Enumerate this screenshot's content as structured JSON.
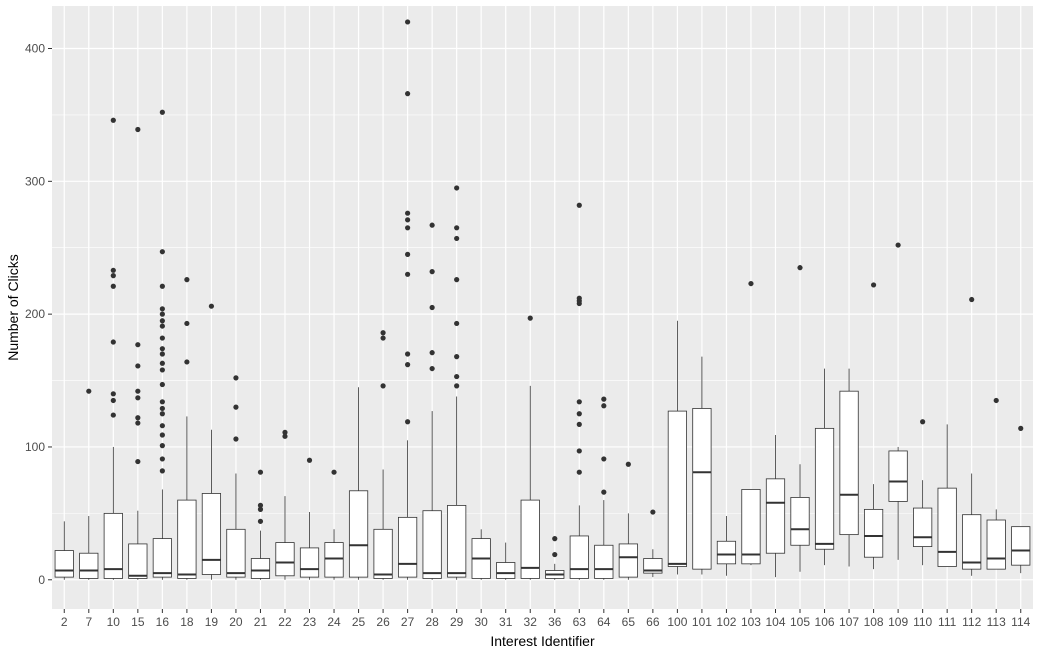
{
  "chart_data": {
    "type": "box",
    "xlabel": "Interest Identifier",
    "ylabel": "Number of Clicks",
    "ylim": [
      -22,
      432
    ],
    "yticks": [
      0,
      100,
      200,
      300,
      400
    ],
    "grid": true,
    "legend": "none",
    "colors": {
      "panel": "#ebebeb",
      "grid": "#ffffff",
      "box_fill": "#ffffff",
      "box_line": "#333333",
      "outlier": "#333333"
    },
    "categories": [
      "2",
      "7",
      "10",
      "15",
      "16",
      "18",
      "19",
      "20",
      "21",
      "22",
      "23",
      "24",
      "25",
      "26",
      "27",
      "28",
      "29",
      "30",
      "31",
      "32",
      "36",
      "63",
      "64",
      "65",
      "66",
      "100",
      "101",
      "102",
      "103",
      "104",
      "105",
      "106",
      "107",
      "108",
      "109",
      "110",
      "111",
      "112",
      "113",
      "114"
    ],
    "boxes": [
      {
        "id": "2",
        "min": 0,
        "q1": 2,
        "median": 7,
        "q3": 22,
        "max": 44,
        "outliers": []
      },
      {
        "id": "7",
        "min": 0,
        "q1": 1,
        "median": 7,
        "q3": 20,
        "max": 48,
        "outliers": [
          142
        ]
      },
      {
        "id": "10",
        "min": 0,
        "q1": 1,
        "median": 8,
        "q3": 50,
        "max": 100,
        "outliers": [
          124,
          135,
          140,
          179,
          221,
          229,
          233,
          346
        ]
      },
      {
        "id": "15",
        "min": 0,
        "q1": 1,
        "median": 3,
        "q3": 27,
        "max": 52,
        "outliers": [
          89,
          118,
          122,
          137,
          142,
          161,
          177,
          339
        ]
      },
      {
        "id": "16",
        "min": 0,
        "q1": 2,
        "median": 5,
        "q3": 31,
        "max": 68,
        "outliers": [
          82,
          91,
          101,
          109,
          116,
          125,
          129,
          134,
          147,
          158,
          163,
          170,
          174,
          182,
          191,
          195,
          200,
          204,
          221,
          247,
          352
        ]
      },
      {
        "id": "18",
        "min": 0,
        "q1": 1,
        "median": 4,
        "q3": 60,
        "max": 123,
        "outliers": [
          164,
          193,
          226
        ]
      },
      {
        "id": "19",
        "min": 0,
        "q1": 4,
        "median": 15,
        "q3": 65,
        "max": 113,
        "outliers": [
          206
        ]
      },
      {
        "id": "20",
        "min": 0,
        "q1": 2,
        "median": 5,
        "q3": 38,
        "max": 80,
        "outliers": [
          106,
          130,
          152
        ]
      },
      {
        "id": "21",
        "min": 0,
        "q1": 1,
        "median": 7,
        "q3": 16,
        "max": 37,
        "outliers": [
          44,
          53,
          56,
          81
        ]
      },
      {
        "id": "22",
        "min": 0,
        "q1": 3,
        "median": 13,
        "q3": 28,
        "max": 63,
        "outliers": [
          108,
          111
        ]
      },
      {
        "id": "23",
        "min": 0,
        "q1": 2,
        "median": 8,
        "q3": 24,
        "max": 51,
        "outliers": [
          90
        ]
      },
      {
        "id": "24",
        "min": 0,
        "q1": 2,
        "median": 16,
        "q3": 28,
        "max": 38,
        "outliers": [
          81
        ]
      },
      {
        "id": "25",
        "min": 0,
        "q1": 2,
        "median": 26,
        "q3": 67,
        "max": 145,
        "outliers": []
      },
      {
        "id": "26",
        "min": 0,
        "q1": 1,
        "median": 4,
        "q3": 38,
        "max": 83,
        "outliers": [
          146,
          182,
          186
        ]
      },
      {
        "id": "27",
        "min": 0,
        "q1": 2,
        "median": 12,
        "q3": 47,
        "max": 105,
        "outliers": [
          119,
          162,
          170,
          230,
          245,
          265,
          271,
          276,
          366,
          420
        ]
      },
      {
        "id": "28",
        "min": 0,
        "q1": 1,
        "median": 5,
        "q3": 52,
        "max": 127,
        "outliers": [
          159,
          171,
          205,
          232,
          267
        ]
      },
      {
        "id": "29",
        "min": 0,
        "q1": 2,
        "median": 5,
        "q3": 56,
        "max": 138,
        "outliers": [
          146,
          153,
          168,
          193,
          226,
          257,
          265,
          295
        ]
      },
      {
        "id": "30",
        "min": 0,
        "q1": 1,
        "median": 16,
        "q3": 31,
        "max": 38,
        "outliers": []
      },
      {
        "id": "31",
        "min": 0,
        "q1": 1,
        "median": 5,
        "q3": 13,
        "max": 28,
        "outliers": []
      },
      {
        "id": "32",
        "min": 0,
        "q1": 1,
        "median": 9,
        "q3": 60,
        "max": 146,
        "outliers": [
          197
        ]
      },
      {
        "id": "36",
        "min": 0,
        "q1": 1,
        "median": 4,
        "q3": 7,
        "max": 12,
        "outliers": [
          19,
          31
        ]
      },
      {
        "id": "63",
        "min": 0,
        "q1": 1,
        "median": 8,
        "q3": 33,
        "max": 56,
        "outliers": [
          81,
          97,
          117,
          125,
          134,
          208,
          210,
          212,
          282
        ]
      },
      {
        "id": "64",
        "min": 0,
        "q1": 1,
        "median": 8,
        "q3": 26,
        "max": 60,
        "outliers": [
          66,
          91,
          131,
          136
        ]
      },
      {
        "id": "65",
        "min": 0,
        "q1": 2,
        "median": 17,
        "q3": 27,
        "max": 50,
        "outliers": [
          87
        ]
      },
      {
        "id": "66",
        "min": 2,
        "q1": 5,
        "median": 7,
        "q3": 16,
        "max": 23,
        "outliers": [
          51
        ]
      },
      {
        "id": "100",
        "min": 4,
        "q1": 10,
        "median": 12,
        "q3": 127,
        "max": 195,
        "outliers": []
      },
      {
        "id": "101",
        "min": 4,
        "q1": 8,
        "median": 81,
        "q3": 129,
        "max": 168,
        "outliers": []
      },
      {
        "id": "102",
        "min": 3,
        "q1": 12,
        "median": 19,
        "q3": 29,
        "max": 48,
        "outliers": []
      },
      {
        "id": "103",
        "min": 11,
        "q1": 12,
        "median": 19,
        "q3": 68,
        "max": 68,
        "outliers": [
          223
        ]
      },
      {
        "id": "104",
        "min": 2,
        "q1": 20,
        "median": 58,
        "q3": 76,
        "max": 109,
        "outliers": []
      },
      {
        "id": "105",
        "min": 6,
        "q1": 26,
        "median": 38,
        "q3": 62,
        "max": 87,
        "outliers": [
          235
        ]
      },
      {
        "id": "106",
        "min": 11,
        "q1": 23,
        "median": 27,
        "q3": 114,
        "max": 159,
        "outliers": []
      },
      {
        "id": "107",
        "min": 10,
        "q1": 34,
        "median": 64,
        "q3": 142,
        "max": 159,
        "outliers": []
      },
      {
        "id": "108",
        "min": 8,
        "q1": 17,
        "median": 33,
        "q3": 53,
        "max": 72,
        "outliers": [
          222
        ]
      },
      {
        "id": "109",
        "min": 15,
        "q1": 59,
        "median": 74,
        "q3": 97,
        "max": 100,
        "outliers": [
          252
        ]
      },
      {
        "id": "110",
        "min": 11,
        "q1": 25,
        "median": 32,
        "q3": 54,
        "max": 75,
        "outliers": [
          119
        ]
      },
      {
        "id": "111",
        "min": 10,
        "q1": 10,
        "median": 21,
        "q3": 69,
        "max": 117,
        "outliers": []
      },
      {
        "id": "112",
        "min": 3,
        "q1": 8,
        "median": 13,
        "q3": 49,
        "max": 80,
        "outliers": [
          211
        ]
      },
      {
        "id": "113",
        "min": 8,
        "q1": 8,
        "median": 16,
        "q3": 45,
        "max": 53,
        "outliers": [
          135
        ]
      },
      {
        "id": "114",
        "min": 5,
        "q1": 11,
        "median": 22,
        "q3": 40,
        "max": 40,
        "outliers": [
          114
        ]
      }
    ]
  }
}
